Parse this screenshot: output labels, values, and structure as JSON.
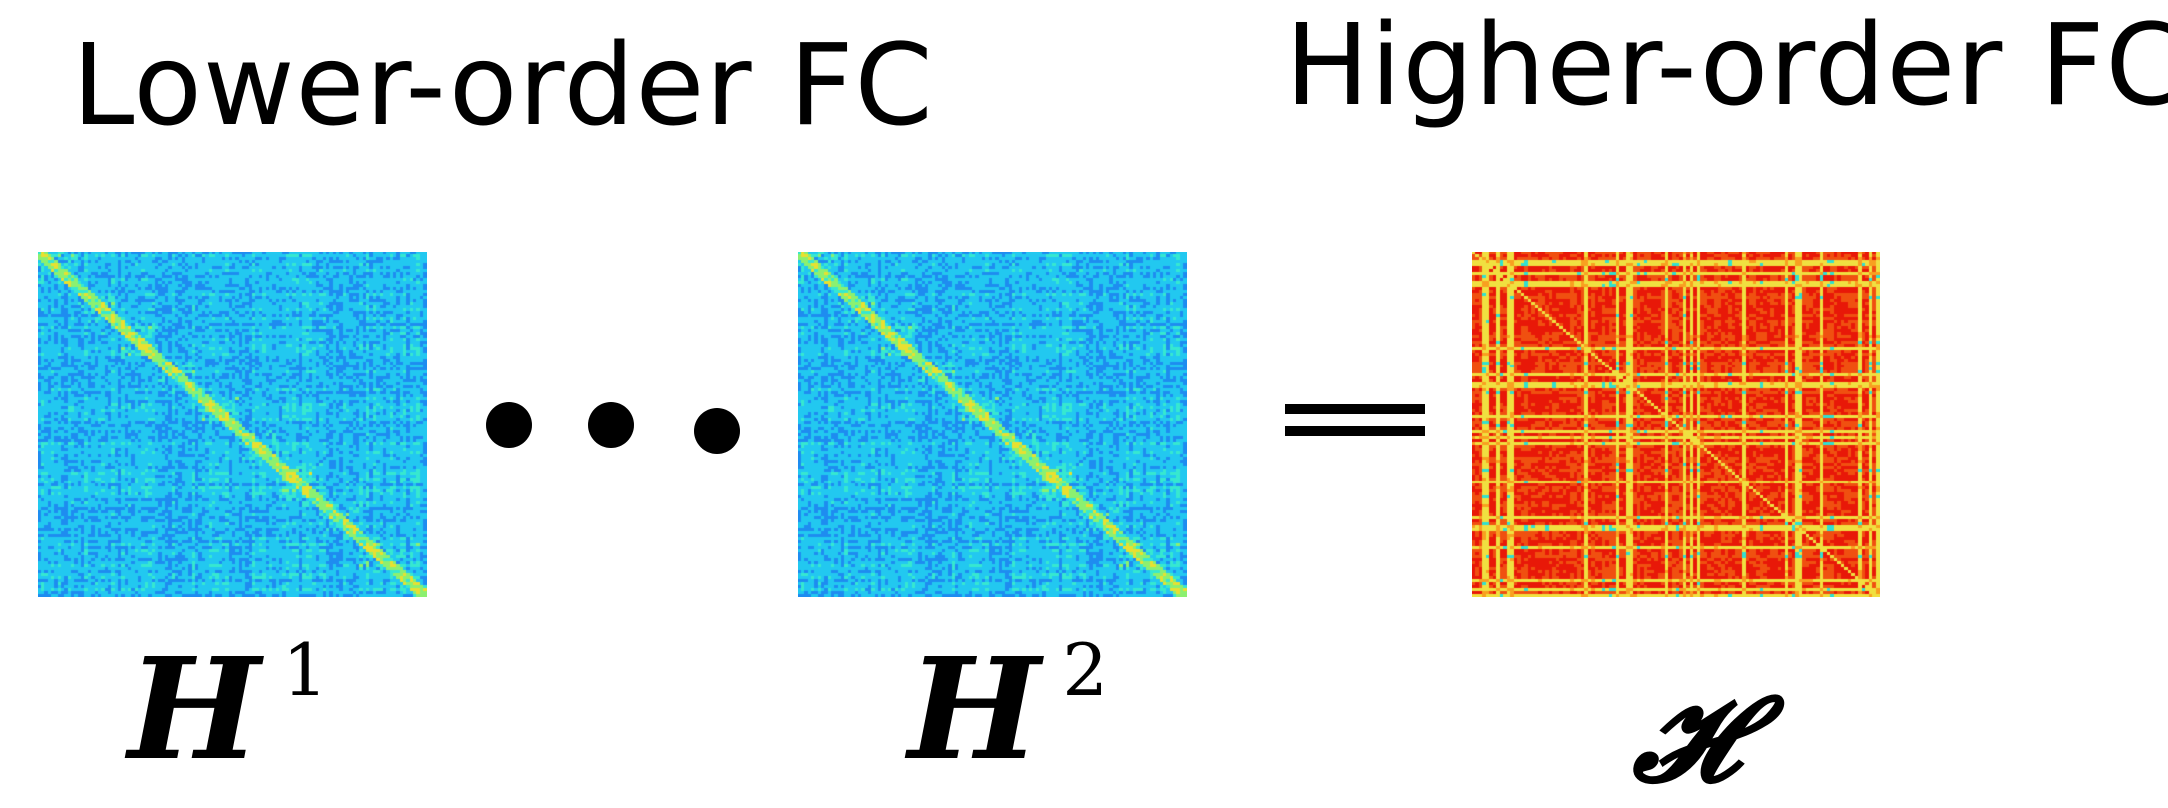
{
  "titles": {
    "lower": "Lower-order FC",
    "higher": "Higher-order FC"
  },
  "labels": {
    "h1": {
      "base": "H",
      "sup": "1"
    },
    "h2": {
      "base": "H",
      "sup": "2"
    },
    "tensor": "𝓗"
  },
  "colors": {
    "lower_matrix_palette": [
      "#1a3fe0",
      "#1e8cf0",
      "#22c8f0",
      "#36e8d0",
      "#8cf070",
      "#e8e030"
    ],
    "higher_matrix_palette": [
      "#30e0d0",
      "#f0e040",
      "#f8a020",
      "#f05010",
      "#e81808"
    ]
  },
  "matrices": {
    "h1": {
      "kind": "lower",
      "seed": 17
    },
    "h2": {
      "kind": "lower",
      "seed": 17
    },
    "tensor": {
      "kind": "higher",
      "seed": 91
    }
  }
}
